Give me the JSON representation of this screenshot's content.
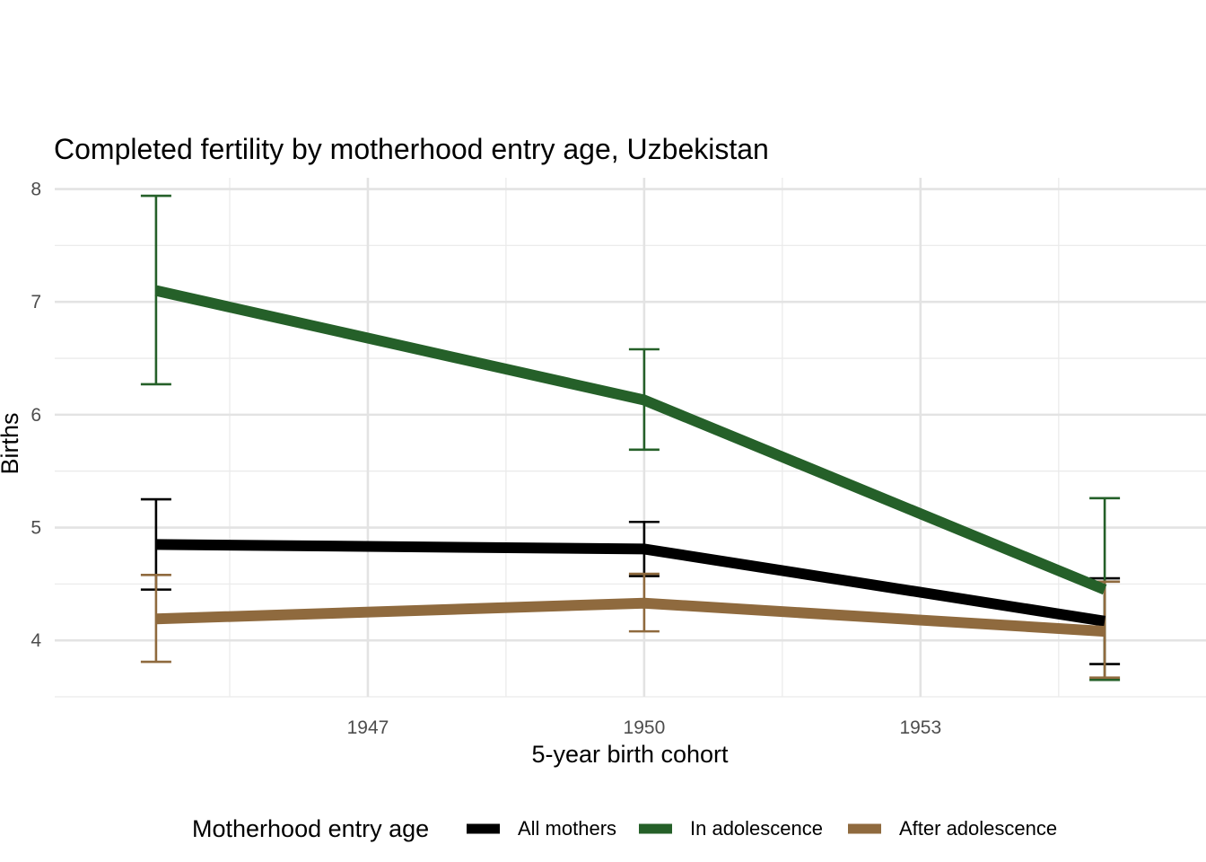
{
  "chart_data": {
    "type": "line",
    "title": "Completed fertility by motherhood entry age,  Uzbekistan",
    "xlabel": "5-year birth cohort",
    "ylabel": "Births",
    "xlim": [
      1943.6,
      1956.1
    ],
    "ylim": [
      3.5,
      8.1
    ],
    "x_ticks": [
      1947,
      1950,
      1953
    ],
    "y_ticks": [
      4,
      5,
      6,
      7,
      8
    ],
    "x_tick_labels": [
      "1947",
      "1950",
      "1953"
    ],
    "y_tick_labels": [
      "4",
      "5",
      "6",
      "7",
      "8"
    ],
    "grid": true,
    "legend": {
      "title": "Motherhood entry age",
      "position": "bottom"
    },
    "x": [
      1944.7,
      1950.0,
      1955.0
    ],
    "series": [
      {
        "name": "All mothers",
        "color": "#000000",
        "values": [
          4.85,
          4.81,
          4.17
        ],
        "lower": [
          4.45,
          4.57,
          3.79
        ],
        "upper": [
          5.25,
          5.05,
          4.55
        ]
      },
      {
        "name": "In adolescence",
        "color": "#256029",
        "values": [
          7.1,
          6.13,
          4.45
        ],
        "lower": [
          6.27,
          5.69,
          3.65
        ],
        "upper": [
          7.94,
          6.58,
          5.26
        ]
      },
      {
        "name": "After adolescence",
        "color": "#8f6a3e",
        "values": [
          4.19,
          4.33,
          4.08
        ],
        "lower": [
          3.81,
          4.08,
          3.67
        ],
        "upper": [
          4.58,
          4.59,
          4.52
        ]
      }
    ]
  }
}
